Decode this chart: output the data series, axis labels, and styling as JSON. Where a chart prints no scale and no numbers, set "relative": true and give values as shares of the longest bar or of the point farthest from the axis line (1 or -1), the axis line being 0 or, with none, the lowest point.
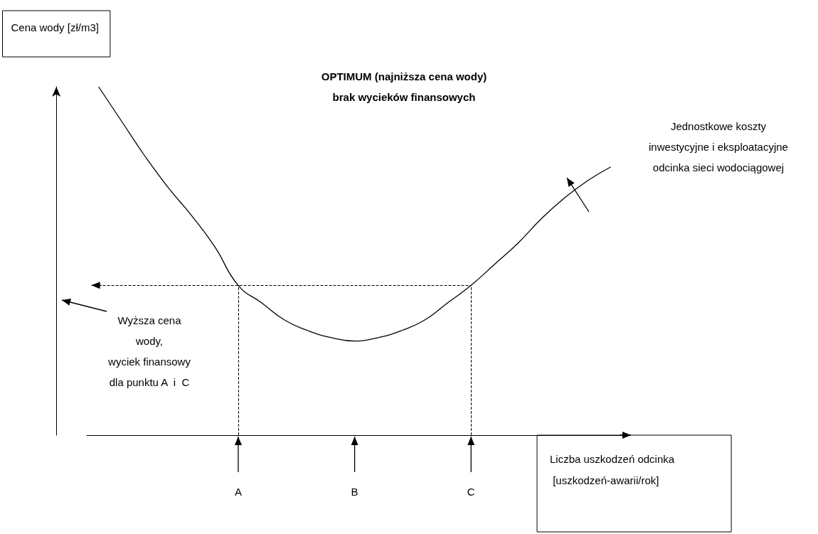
{
  "chart_data": {
    "type": "line",
    "relative": true,
    "ylabel": "Cena wody [zł/m3]",
    "xlabel": "Liczba uszkodzeń odcinka\n [uszkodzeń-awarii/rok]",
    "categories": [
      null,
      null,
      null,
      null,
      null,
      null,
      "A",
      null,
      null,
      null,
      null,
      "B",
      null,
      null,
      null,
      null,
      "C",
      null,
      null,
      null,
      null,
      null,
      null
    ],
    "series": [
      {
        "color": "#000000",
        "values": [
          1,
          0.9,
          0.8,
          0.71,
          0.63,
          0.54,
          0.43,
          0.38,
          0.33,
          0.3,
          0.28,
          0.27,
          0.28,
          0.3,
          0.33,
          0.38,
          0.43,
          0.49,
          0.55,
          0.62,
          0.68,
          0.73,
          0.77
        ]
      }
    ],
    "marker": "none",
    "ref_lines": [
      {
        "axis": "y",
        "value": 0.43,
        "line_style": "dashed"
      },
      {
        "axis": "x",
        "value": "A",
        "line_style": "dashed"
      },
      {
        "axis": "x",
        "value": "C",
        "line_style": "dashed"
      }
    ],
    "annotations": [
      "OPTIMUM (najniższa cena wody)\nbrak wycieków finansowych",
      "Jednostkowe koszty\ninwestycyjne i eksploatacyjne\nodcinka sieci wodociągowej",
      "Wyższa cena\nwody,\nwyciek finansowy\ndla punktu A  i  C"
    ]
  }
}
